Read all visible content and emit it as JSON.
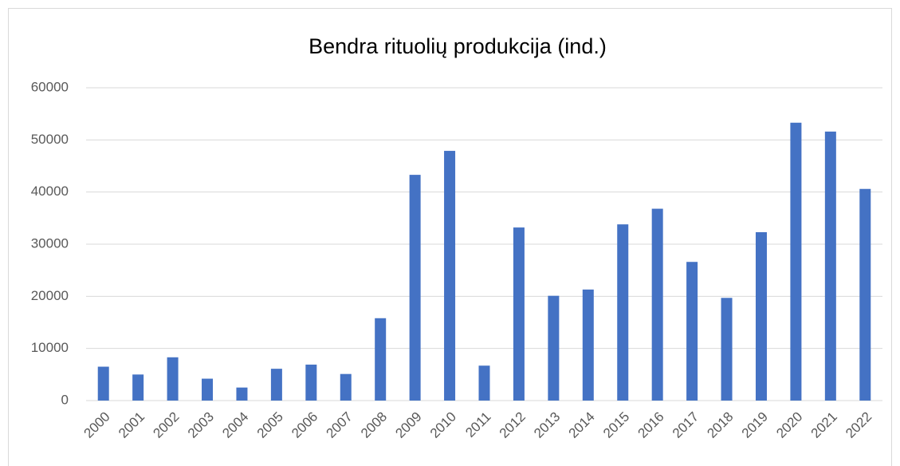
{
  "chart_data": {
    "type": "bar",
    "title": "Bendra rituolių produkcija (ind.)",
    "categories": [
      "2000",
      "2001",
      "2002",
      "2003",
      "2004",
      "2005",
      "2006",
      "2007",
      "2008",
      "2009",
      "2010",
      "2011",
      "2012",
      "2013",
      "2014",
      "2015",
      "2016",
      "2017",
      "2018",
      "2019",
      "2020",
      "2021",
      "2022"
    ],
    "values": [
      6500,
      5000,
      8300,
      4200,
      2500,
      6100,
      6900,
      5100,
      15800,
      43300,
      47900,
      6700,
      33200,
      20100,
      21300,
      33800,
      36800,
      26600,
      19700,
      32300,
      53300,
      51600,
      40600
    ],
    "color": "#4472c4",
    "ylim": [
      0,
      60000
    ],
    "yticks": [
      0,
      10000,
      20000,
      30000,
      40000,
      50000,
      60000
    ],
    "grid": true
  }
}
